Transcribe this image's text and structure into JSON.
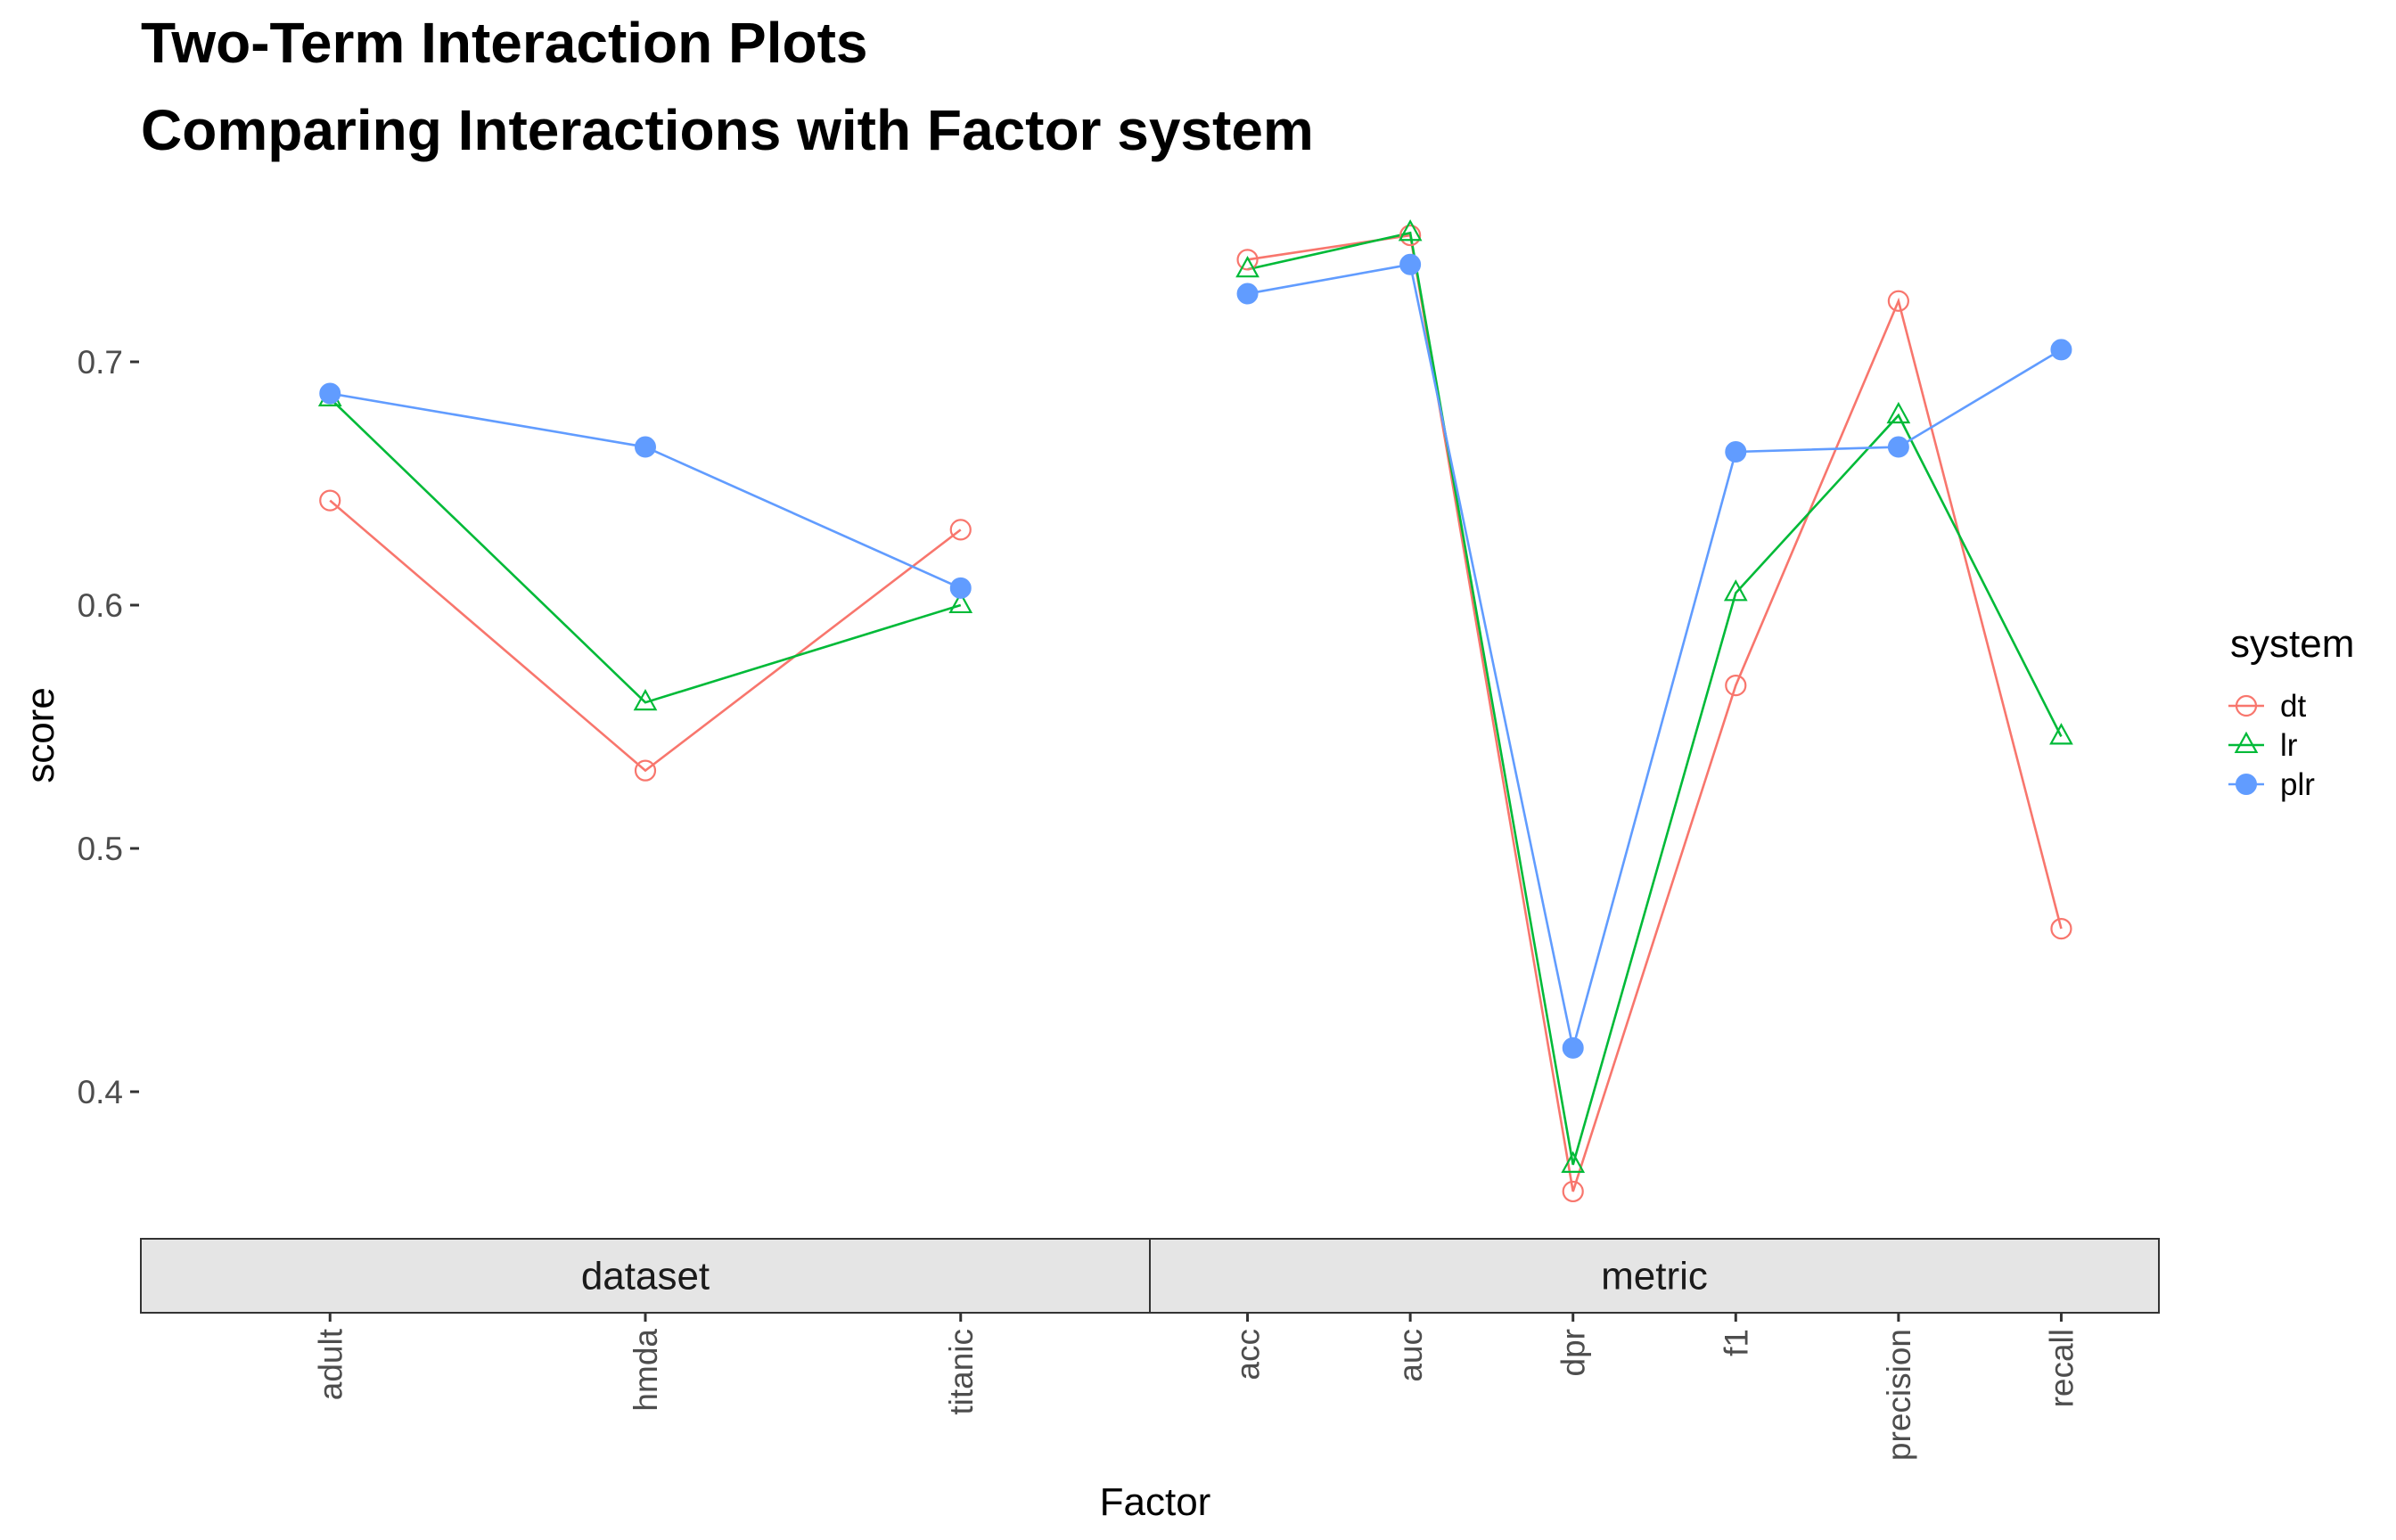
{
  "chart_data": {
    "type": "line",
    "title": "Two-Term Interaction Plots",
    "subtitle": "Comparing Interactions with Factor system",
    "xlabel": "Factor",
    "ylabel": "score",
    "yticks": [
      "0.4",
      "0.5",
      "0.6",
      "0.7"
    ],
    "ylim": [
      0.34,
      0.765
    ],
    "grid": false,
    "legend": {
      "title": "system",
      "placement": "right"
    },
    "facets": [
      {
        "label": "dataset",
        "categories": [
          "adult",
          "hmda",
          "titanic"
        ]
      },
      {
        "label": "metric",
        "categories": [
          "acc",
          "auc",
          "dpr",
          "f1",
          "precision",
          "recall"
        ]
      }
    ],
    "series": [
      {
        "name": "dt",
        "color": "#F8766D",
        "shape": "open-circle",
        "values": [
          0.643,
          0.532,
          0.631,
          0.742,
          0.752,
          0.359,
          0.567,
          0.725,
          0.467
        ]
      },
      {
        "name": "lr",
        "color": "#00BA38",
        "shape": "open-triangle",
        "values": [
          0.685,
          0.56,
          0.6,
          0.738,
          0.753,
          0.37,
          0.605,
          0.678,
          0.546
        ]
      },
      {
        "name": "plr",
        "color": "#619CFF",
        "shape": "filled-circle",
        "values": [
          0.687,
          0.665,
          0.607,
          0.728,
          0.74,
          0.418,
          0.663,
          0.665,
          0.705
        ]
      }
    ]
  }
}
